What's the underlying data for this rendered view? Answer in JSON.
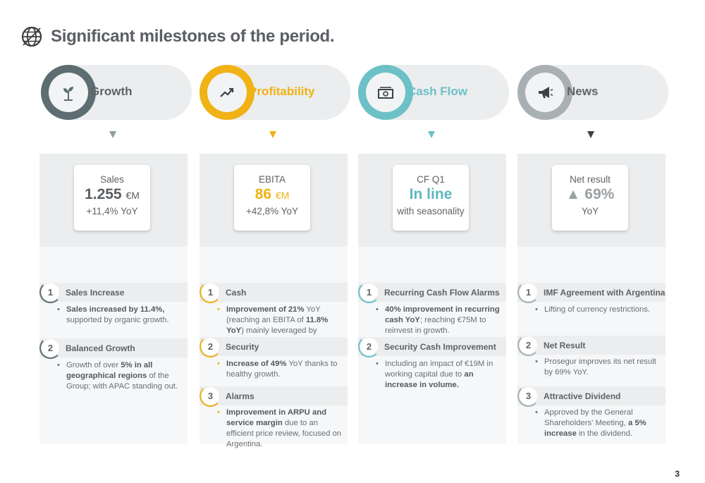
{
  "page": {
    "title": "Significant milestones of the period.",
    "number": "3"
  },
  "columns": [
    {
      "label": "Growth",
      "accent": "#5d6d71",
      "icon": "plant-icon",
      "kpi": {
        "line1": "Sales",
        "value": "1.255",
        "unit": "€M",
        "line3": "+11,4% YoY",
        "value_color": "#5a5e62"
      },
      "milestones": [
        {
          "num": "1",
          "title": "Sales Increase",
          "desc_html": "<b>Sales increased by 11.4%,</b> supported by organic growth."
        },
        {
          "num": "2",
          "title": "Balanced Growth",
          "desc_html": "Growth of over <b>5% in all geographical regions</b> of the Group; with APAC standing out."
        }
      ]
    },
    {
      "label": "Profitability",
      "accent": "#f0b214",
      "icon": "trend-icon",
      "kpi": {
        "line1": "EBITA",
        "value": "86",
        "unit": "€M",
        "line3": "+42,8% YoY",
        "value_color": "#f0b214"
      },
      "milestones": [
        {
          "num": "1",
          "title": "Cash",
          "desc_html": "<b>Improvement of 21%</b> YoY (reaching an EBITA of <b>11.8% YoY</b>) mainly leveraged by efficiencies."
        },
        {
          "num": "2",
          "title": "Security",
          "desc_html": "<b>Increase of 49%</b> YoY thanks to healthy growth."
        },
        {
          "num": "3",
          "title": "Alarms",
          "desc_html": "<b>Improvement in ARPU and service margin</b> due to an efficient price review, focused on Argentina."
        }
      ]
    },
    {
      "label": "Cash Flow",
      "accent": "#6cc1c7",
      "icon": "cash-icon",
      "kpi": {
        "line1": "CF Q1",
        "value": "In line",
        "unit": "",
        "line3": "with seasonality",
        "value_color": "#5db6c0"
      },
      "milestones": [
        {
          "num": "1",
          "title": "Recurring Cash Flow Alarms",
          "desc_html": "<b>40% improvement in recurring cash YoY</b>; reaching €75M to reinvest in growth."
        },
        {
          "num": "2",
          "title": "Security Cash Improvement",
          "desc_html": "Including an impact of €19M in working capital due to <b>an increase in volume.</b>"
        }
      ]
    },
    {
      "label": "News",
      "accent": "#a9b0b3",
      "icon": "megaphone-icon",
      "kpi": {
        "line1": "Net result",
        "value": "▲ 69%",
        "unit": "",
        "line3": "YoY",
        "value_color": "#9aa0a4"
      },
      "milestones": [
        {
          "num": "1",
          "title": "IMF Agreement with Argentina",
          "desc_html": "Lifting of currency restrictions."
        },
        {
          "num": "2",
          "title": "Net Result",
          "desc_html": "Prosegur improves its net result by 69% YoY."
        },
        {
          "num": "3",
          "title": "Attractive Dividend",
          "desc_html": "Approved by the General Shareholders' Meeting, <b>a 5% increase</b> in the dividend."
        }
      ]
    }
  ]
}
